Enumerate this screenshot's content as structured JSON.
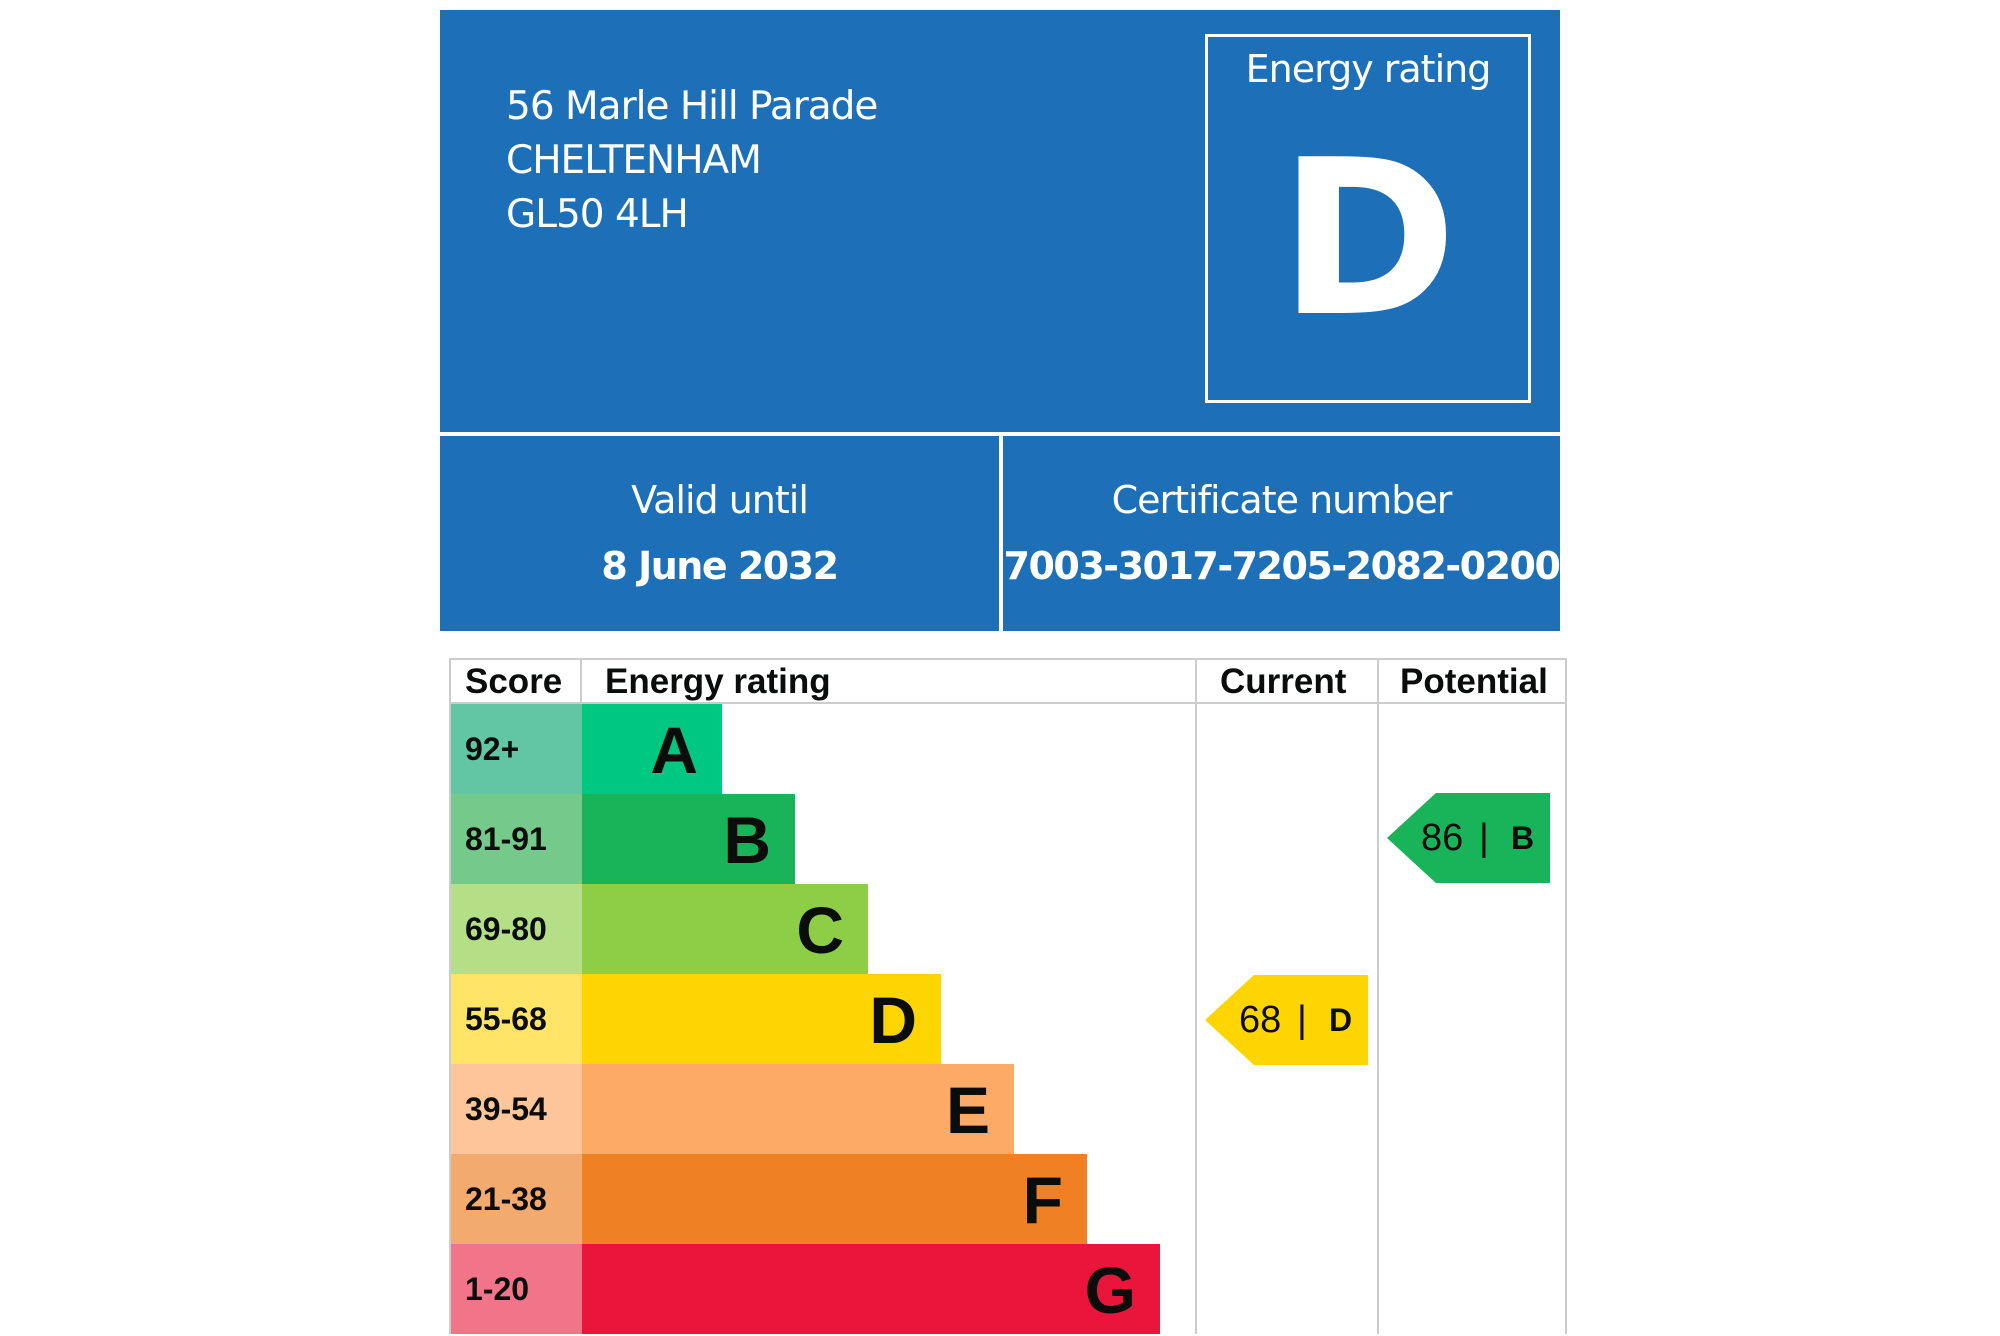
{
  "address": {
    "line1": "56 Marle Hill Parade",
    "line2": "CHELTENHAM",
    "line3": "GL50 4LH"
  },
  "rating_box": {
    "label": "Energy rating",
    "letter": "D"
  },
  "validity": {
    "label": "Valid until",
    "value": "8 June 2032"
  },
  "certificate": {
    "label": "Certificate number",
    "value": "7003-3017-7205-2082-0200"
  },
  "table": {
    "headers": {
      "score": "Score",
      "rating": "Energy rating",
      "current": "Current",
      "potential": "Potential"
    },
    "bands": [
      {
        "score": "92+",
        "letter": "A",
        "color": "#00c781",
        "score_color": "#62c6a4"
      },
      {
        "score": "81-91",
        "letter": "B",
        "color": "#19b459",
        "score_color": "#75c98a"
      },
      {
        "score": "69-80",
        "letter": "C",
        "color": "#8dce46",
        "score_color": "#b4df86"
      },
      {
        "score": "55-68",
        "letter": "D",
        "color": "#ffd500",
        "score_color": "#ffe466"
      },
      {
        "score": "39-54",
        "letter": "E",
        "color": "#fcaa65",
        "score_color": "#fdc69a"
      },
      {
        "score": "21-38",
        "letter": "F",
        "color": "#ef8023",
        "score_color": "#f3aa6e"
      },
      {
        "score": "1-20",
        "letter": "G",
        "color": "#e9153b",
        "score_color": "#f27488"
      }
    ],
    "current": {
      "score": "68",
      "separator": "|",
      "letter": "D",
      "color": "#ffd500"
    },
    "potential": {
      "score": "86",
      "separator": "|",
      "letter": "B",
      "color": "#19b459"
    }
  }
}
